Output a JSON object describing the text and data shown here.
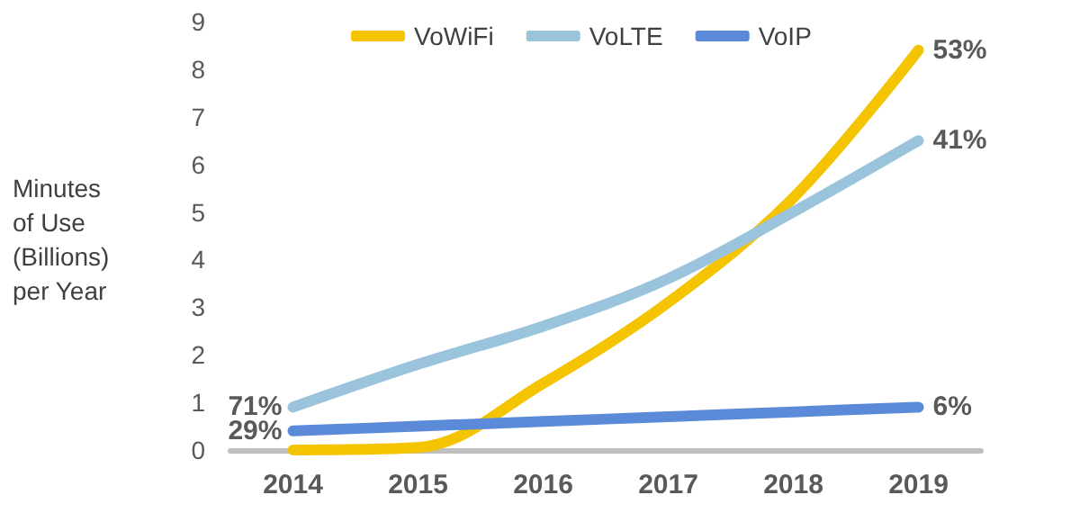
{
  "chart_data": {
    "type": "line",
    "ylabel": "Minutes\nof Use\n(Billions)\nper Year",
    "categories": [
      "2014",
      "2015",
      "2016",
      "2017",
      "2018",
      "2019"
    ],
    "series": [
      {
        "name": "VoWiFi",
        "color": "#f5c400",
        "values": [
          0.0,
          0.05,
          1.4,
          3.1,
          5.3,
          8.4
        ]
      },
      {
        "name": "VoLTE",
        "color": "#99c4dc",
        "values": [
          0.9,
          1.8,
          2.6,
          3.6,
          5.0,
          6.5
        ]
      },
      {
        "name": "VoIP",
        "color": "#5b8ad8",
        "values": [
          0.4,
          0.5,
          0.6,
          0.7,
          0.8,
          0.9
        ]
      }
    ],
    "annotations": [
      {
        "text": "53%",
        "x": "2019",
        "y": 8.4
      },
      {
        "text": "71%",
        "x": "2014",
        "y": 0.9
      },
      {
        "text": "41%",
        "x": "2019",
        "y": 6.5
      },
      {
        "text": "29%",
        "x": "2014",
        "y": 0.4
      },
      {
        "text": "6%",
        "x": "2019",
        "y": 0.9
      }
    ],
    "ylim": [
      0,
      9
    ],
    "yticks": [
      0,
      1,
      2,
      3,
      4,
      5,
      6,
      7,
      8,
      9
    ],
    "grid": false,
    "legend": "top",
    "marker": "none",
    "line_style": "solid"
  }
}
